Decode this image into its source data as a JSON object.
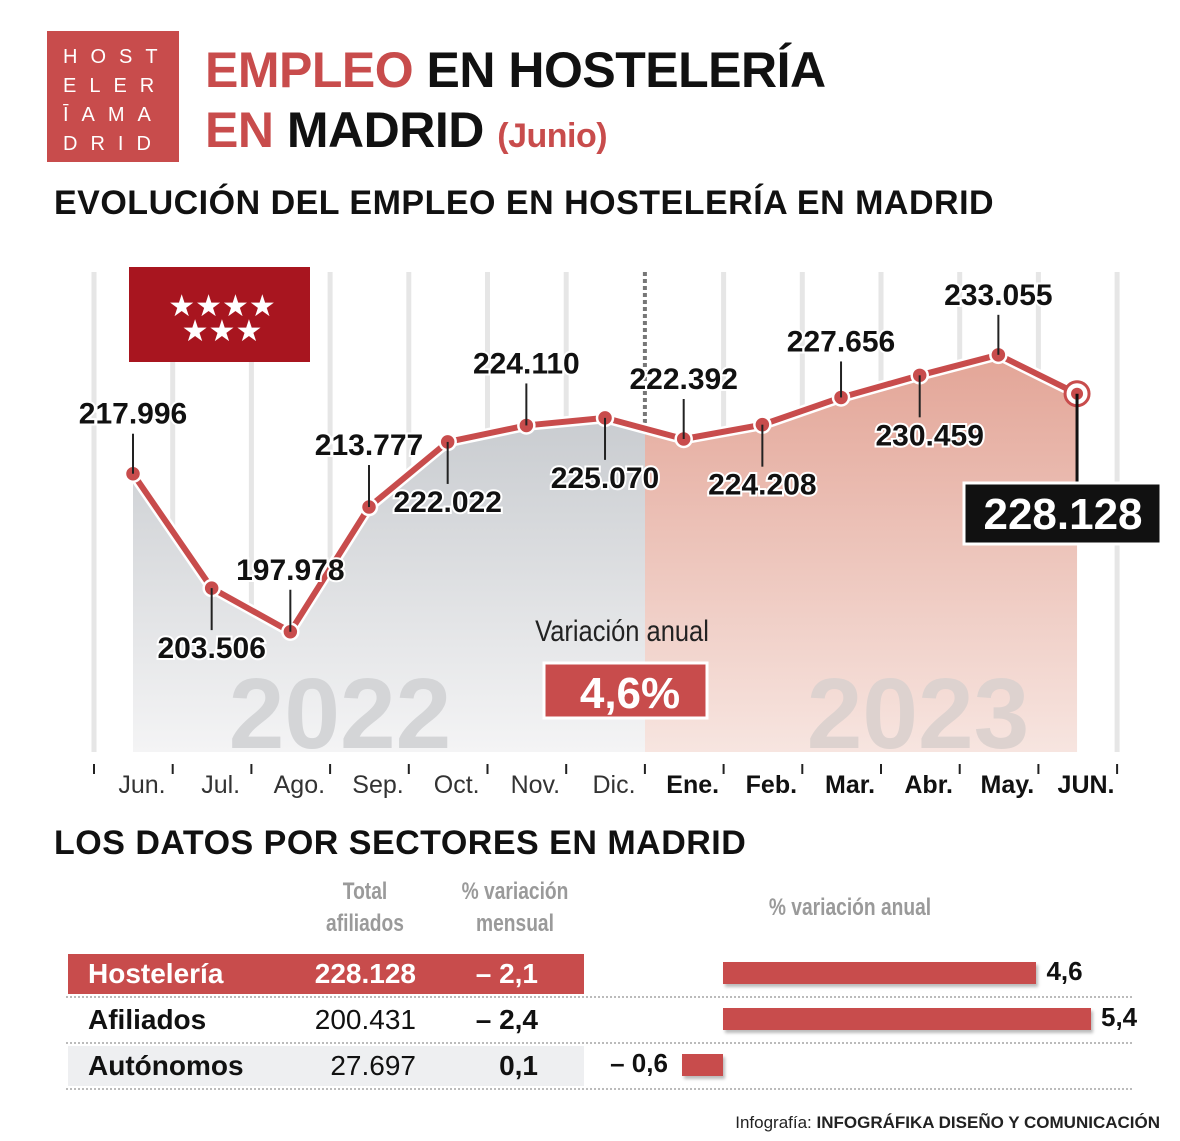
{
  "logo": {
    "lines": [
      "HOST",
      "ELER",
      "ĪAMA",
      "DRID"
    ]
  },
  "header": {
    "title_red": "EMPLEO",
    "title_black_1": "EN HOSTELERÍA",
    "title_red_2": "EN",
    "title_black_2": "MADRID",
    "subtitle": "(Junio)"
  },
  "section1_title": "EVOLUCIÓN DEL EMPLEO EN HOSTELERÍA EN MADRID",
  "section2_title": "LOS DATOS POR SECTORES EN MADRID",
  "colors": {
    "accent": "#c84c4c",
    "flag": "#a8151f",
    "area_2022": "#d8dadd",
    "area_2023": "#e8b2a8"
  },
  "chart_data": {
    "type": "line",
    "categories": [
      "Jun.",
      "Jul.",
      "Ago.",
      "Sep.",
      "Oct.",
      "Nov.",
      "Dic.",
      "Ene.",
      "Feb.",
      "Mar.",
      "Abr.",
      "May.",
      "JUN."
    ],
    "values": [
      217996,
      203506,
      197978,
      213777,
      222022,
      224110,
      225070,
      222392,
      224208,
      227656,
      230459,
      233055,
      228128
    ],
    "data_labels": [
      "217.996",
      "203.506",
      "197.978",
      "213.777",
      "222.022",
      "224.110",
      "225.070",
      "222.392",
      "224.208",
      "227.656",
      "230.459",
      "233.055",
      "228.128"
    ],
    "year_labels": [
      "2022",
      "2023"
    ],
    "annotation_label": "Variación anual",
    "annotation_value": "4,6%",
    "ylim": [
      183000,
      243800
    ],
    "grid": "vertical",
    "area_fill": true
  },
  "table": {
    "headers": {
      "total": "Total afiliados",
      "mensual": "% variación mensual",
      "anual": "% variación anual"
    },
    "rows": [
      {
        "name": "Hostelería",
        "total": "228.128",
        "mensual": "– 2,1",
        "anual": 4.6,
        "anual_label": "4,6"
      },
      {
        "name": "Afiliados",
        "total": "200.431",
        "mensual": "– 2,4",
        "anual": 5.4,
        "anual_label": "5,4"
      },
      {
        "name": "Autónomos",
        "total": "27.697",
        "mensual": "0,1",
        "anual": -0.6,
        "anual_label": "– 0,6"
      }
    ]
  },
  "credit": {
    "prefix": "Infografía:",
    "name": "INFOGRÁFIKA DISEÑO Y COMUNICACIÓN"
  }
}
